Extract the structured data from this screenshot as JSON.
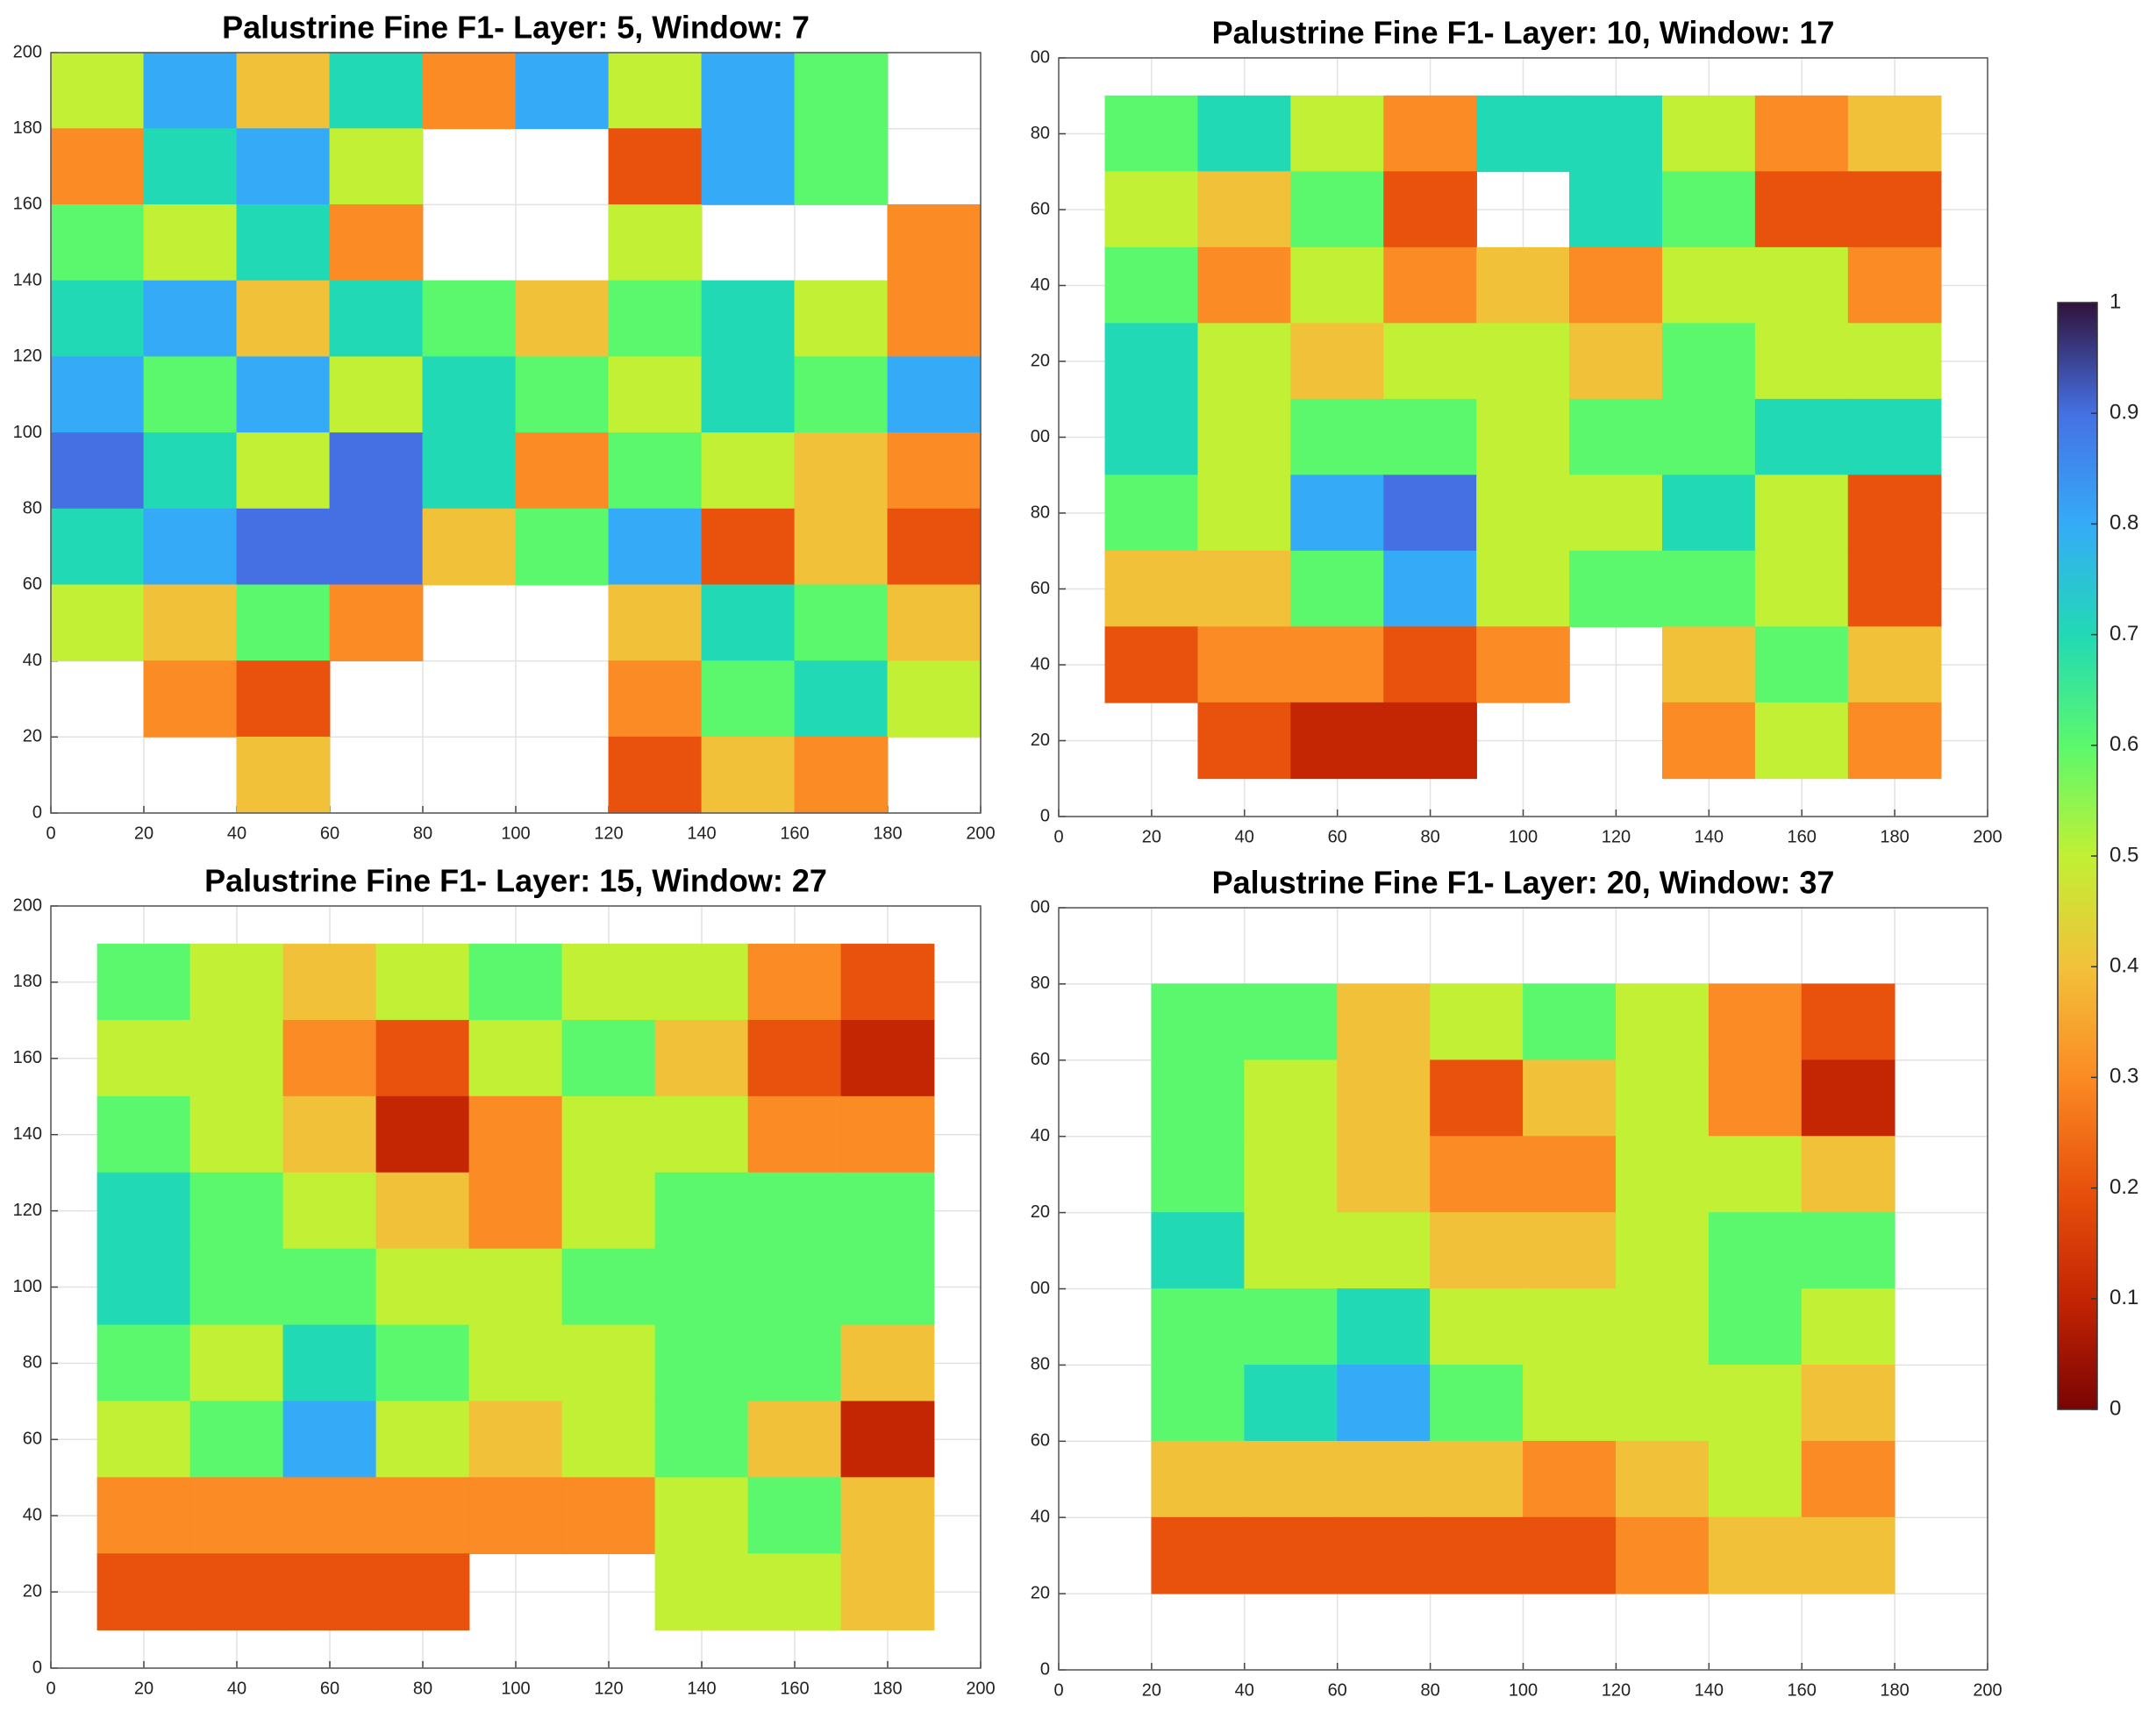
{
  "chart_data": [
    {
      "type": "heatmap",
      "title": "Palustrine Fine F1- Layer: 5, Window: 7",
      "x": [
        10,
        30,
        50,
        70,
        90,
        110,
        130,
        150,
        170,
        190
      ],
      "y": [
        190,
        170,
        150,
        130,
        110,
        90,
        70,
        50,
        30,
        10
      ],
      "values": [
        [
          0.5,
          0.8,
          0.4,
          0.7,
          0.3,
          0.8,
          0.5,
          0.8,
          0.6,
          null
        ],
        [
          0.3,
          0.7,
          0.8,
          0.5,
          null,
          null,
          0.2,
          0.8,
          0.6,
          null
        ],
        [
          0.6,
          0.5,
          0.7,
          0.3,
          null,
          null,
          0.5,
          null,
          null,
          0.3
        ],
        [
          0.7,
          0.8,
          0.4,
          0.7,
          0.6,
          0.4,
          0.6,
          0.7,
          0.5,
          0.3
        ],
        [
          0.8,
          0.6,
          0.8,
          0.5,
          0.7,
          0.6,
          0.5,
          0.7,
          0.6,
          0.8
        ],
        [
          0.9,
          0.7,
          0.5,
          0.9,
          0.7,
          0.3,
          0.6,
          0.5,
          0.4,
          0.3
        ],
        [
          0.7,
          0.8,
          0.9,
          0.9,
          0.4,
          0.6,
          0.8,
          0.2,
          0.4,
          0.2
        ],
        [
          0.5,
          0.4,
          0.6,
          0.3,
          null,
          null,
          0.4,
          0.7,
          0.6,
          0.4
        ],
        [
          null,
          0.3,
          0.2,
          null,
          null,
          null,
          0.3,
          0.6,
          0.7,
          0.5
        ],
        [
          null,
          null,
          0.4,
          null,
          null,
          null,
          0.2,
          0.4,
          0.3,
          null
        ]
      ],
      "xlim": [
        0,
        200
      ],
      "ylim": [
        0,
        200
      ],
      "xticks": [
        0,
        20,
        40,
        60,
        80,
        100,
        120,
        140,
        160,
        180,
        200
      ],
      "yticks": [
        0,
        20,
        40,
        60,
        80,
        100,
        120,
        140,
        160,
        180,
        200
      ],
      "grid": true
    },
    {
      "type": "heatmap",
      "title": "Palustrine Fine F1- Layer: 10, Window: 17",
      "x": [
        20,
        40,
        60,
        80,
        100,
        120,
        140,
        160,
        180
      ],
      "y": [
        180,
        160,
        140,
        120,
        100,
        80,
        60,
        40,
        20
      ],
      "values": [
        [
          0.6,
          0.7,
          0.5,
          0.3,
          0.7,
          0.7,
          0.5,
          0.3,
          0.4
        ],
        [
          0.5,
          0.4,
          0.6,
          0.2,
          null,
          0.7,
          0.6,
          0.2,
          0.2
        ],
        [
          0.6,
          0.3,
          0.5,
          0.3,
          0.4,
          0.3,
          0.5,
          0.5,
          0.3
        ],
        [
          0.7,
          0.5,
          0.4,
          0.5,
          0.5,
          0.4,
          0.6,
          0.5,
          0.5
        ],
        [
          0.7,
          0.5,
          0.6,
          0.6,
          0.5,
          0.6,
          0.6,
          0.7,
          0.7
        ],
        [
          0.6,
          0.5,
          0.8,
          0.9,
          0.5,
          0.5,
          0.7,
          0.5,
          0.2
        ],
        [
          0.4,
          0.4,
          0.6,
          0.8,
          0.5,
          0.6,
          0.6,
          0.5,
          0.2
        ],
        [
          0.2,
          0.3,
          0.3,
          0.2,
          0.3,
          null,
          0.4,
          0.6,
          0.4
        ],
        [
          null,
          0.2,
          0.1,
          0.1,
          null,
          null,
          0.3,
          0.5,
          0.3
        ]
      ],
      "xlim": [
        0,
        200
      ],
      "ylim": [
        0,
        200
      ],
      "xticks": [
        0,
        20,
        40,
        60,
        80,
        100,
        120,
        140,
        160,
        180,
        200
      ],
      "yticks": [
        0,
        {
          "value": 20,
          "label": "20"
        },
        {
          "value": 40,
          "label": "40"
        },
        {
          "value": 60,
          "label": "60"
        },
        {
          "value": 80,
          "label": "80"
        },
        {
          "value": 100,
          "label": "00"
        },
        {
          "value": 120,
          "label": "20"
        },
        {
          "value": 140,
          "label": "40"
        },
        {
          "value": 160,
          "label": "60"
        },
        {
          "value": 180,
          "label": "80"
        },
        {
          "value": 200,
          "label": "00"
        }
      ],
      "grid": true
    },
    {
      "type": "heatmap",
      "title": "Palustrine Fine F1- Layer: 15, Window: 27",
      "x": [
        20,
        40,
        60,
        80,
        100,
        120,
        140,
        160,
        180
      ],
      "y": [
        180,
        160,
        140,
        120,
        100,
        80,
        60,
        40,
        20
      ],
      "values": [
        [
          0.6,
          0.5,
          0.4,
          0.5,
          0.6,
          0.5,
          0.5,
          0.3,
          0.2
        ],
        [
          0.5,
          0.5,
          0.3,
          0.2,
          0.5,
          0.6,
          0.4,
          0.2,
          0.1
        ],
        [
          0.6,
          0.5,
          0.4,
          0.1,
          0.3,
          0.5,
          0.5,
          0.3,
          0.3
        ],
        [
          0.7,
          0.6,
          0.5,
          0.4,
          0.3,
          0.5,
          0.6,
          0.6,
          0.6
        ],
        [
          0.7,
          0.6,
          0.6,
          0.5,
          0.5,
          0.6,
          0.6,
          0.6,
          0.6
        ],
        [
          0.6,
          0.5,
          0.7,
          0.6,
          0.5,
          0.5,
          0.6,
          0.6,
          0.4
        ],
        [
          0.5,
          0.6,
          0.8,
          0.5,
          0.4,
          0.5,
          0.6,
          0.4,
          0.1
        ],
        [
          0.3,
          0.3,
          0.3,
          0.3,
          0.3,
          0.3,
          0.5,
          0.6,
          0.4
        ],
        [
          0.2,
          0.2,
          0.2,
          0.2,
          null,
          null,
          0.5,
          0.5,
          0.4
        ]
      ],
      "xlim": [
        0,
        200
      ],
      "ylim": [
        0,
        200
      ],
      "xticks": [
        0,
        20,
        40,
        60,
        80,
        100,
        120,
        140,
        160,
        180,
        200
      ],
      "yticks": [
        0,
        20,
        40,
        60,
        80,
        100,
        120,
        140,
        160,
        180,
        200
      ],
      "grid": true
    },
    {
      "type": "heatmap",
      "title": "Palustrine Fine F1- Layer: 20, Window: 37",
      "x": [
        30,
        50,
        70,
        90,
        110,
        130,
        150,
        170
      ],
      "y": [
        170,
        150,
        130,
        110,
        90,
        70,
        50,
        30
      ],
      "values": [
        [
          0.6,
          0.6,
          0.4,
          0.5,
          0.6,
          0.5,
          0.3,
          0.2
        ],
        [
          0.6,
          0.5,
          0.4,
          0.2,
          0.4,
          0.5,
          0.3,
          0.1
        ],
        [
          0.6,
          0.5,
          0.4,
          0.3,
          0.3,
          0.5,
          0.5,
          0.4
        ],
        [
          0.7,
          0.5,
          0.5,
          0.4,
          0.4,
          0.5,
          0.6,
          0.6
        ],
        [
          0.6,
          0.6,
          0.7,
          0.5,
          0.5,
          0.5,
          0.6,
          0.5
        ],
        [
          0.6,
          0.7,
          0.8,
          0.6,
          0.5,
          0.5,
          0.5,
          0.4
        ],
        [
          0.4,
          0.4,
          0.4,
          0.4,
          0.3,
          0.4,
          0.5,
          0.3
        ],
        [
          0.2,
          0.2,
          0.2,
          0.2,
          0.2,
          0.3,
          0.4,
          0.4
        ]
      ],
      "xlim": [
        0,
        200
      ],
      "ylim": [
        0,
        200
      ],
      "xticks": [
        0,
        20,
        40,
        60,
        80,
        100,
        120,
        140,
        160,
        180,
        200
      ],
      "yticks": [
        0,
        {
          "value": 20,
          "label": "20"
        },
        {
          "value": 40,
          "label": "40"
        },
        {
          "value": 60,
          "label": "60"
        },
        {
          "value": 80,
          "label": "80"
        },
        {
          "value": 100,
          "label": "00"
        },
        {
          "value": 120,
          "label": "20"
        },
        {
          "value": 140,
          "label": "40"
        },
        {
          "value": 160,
          "label": "60"
        },
        {
          "value": 180,
          "label": "80"
        },
        {
          "value": 200,
          "label": "00"
        }
      ],
      "grid": true
    }
  ],
  "colorbar": {
    "clim": [
      0,
      1
    ],
    "ticks": [
      0,
      0.1,
      0.2,
      0.3,
      0.4,
      0.5,
      0.6,
      0.7,
      0.8,
      0.9,
      1
    ],
    "colormap": [
      "#7a0403",
      "#c42503",
      "#e8520c",
      "#fb8b24",
      "#f2c13a",
      "#c1f034",
      "#5bf86d",
      "#22d9b5",
      "#35abf8",
      "#4570e4",
      "#30123b"
    ]
  }
}
